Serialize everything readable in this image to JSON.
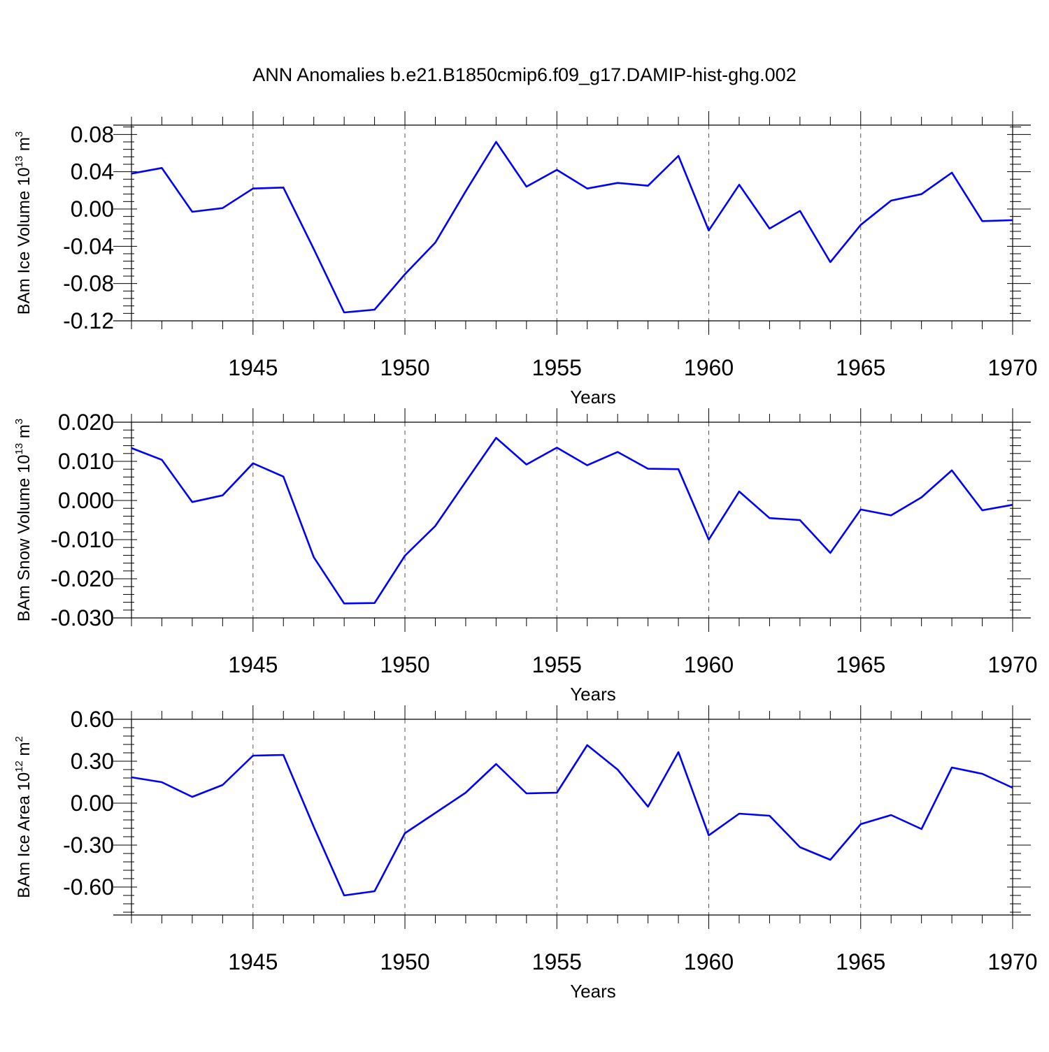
{
  "title": "ANN Anomalies b.e21.B1850cmip6.f09_g17.DAMIP-hist-ghg.002",
  "line_color": "#0000ff",
  "chart_data": [
    {
      "type": "line",
      "title": "ANN Anomalies b.e21.B1850cmip6.f09_g17.DAMIP-hist-ghg.002",
      "xlabel": "Years",
      "ylabel": "BAm Ice Volume 10",
      "ylabel_exp": "13",
      "ylabel_unit": " m",
      "ylabel_unit_exp": "3",
      "xlim": [
        1941,
        1970
      ],
      "ylim": [
        -0.12,
        0.09
      ],
      "xticks": [
        1945,
        1950,
        1955,
        1960,
        1965,
        1970
      ],
      "yticks": [
        "0.08",
        "0.04",
        "0.00",
        "-0.04",
        "-0.08",
        "-0.12"
      ],
      "ytick_values": [
        0.08,
        0.04,
        0.0,
        -0.04,
        -0.08,
        -0.12
      ],
      "grid": "dashed vertical at major x ticks",
      "x": [
        1941,
        1942,
        1943,
        1944,
        1945,
        1946,
        1947,
        1948,
        1949,
        1950,
        1951,
        1952,
        1953,
        1954,
        1955,
        1956,
        1957,
        1958,
        1959,
        1960,
        1961,
        1962,
        1963,
        1964,
        1965,
        1966,
        1967,
        1968,
        1969,
        1970
      ],
      "series": [
        {
          "values": [
            0.038,
            0.044,
            -0.003,
            0.001,
            0.022,
            0.023,
            -0.043,
            -0.111,
            -0.108,
            -0.07,
            -0.036,
            0.019,
            0.072,
            0.024,
            0.042,
            0.022,
            0.028,
            0.025,
            0.057,
            -0.023,
            0.026,
            -0.021,
            -0.002,
            -0.057,
            -0.017,
            0.009,
            0.016,
            0.039,
            -0.013,
            -0.012
          ]
        }
      ]
    },
    {
      "type": "line",
      "xlabel": "Years",
      "ylabel": "BAm Snow Volume 10",
      "ylabel_exp": "13",
      "ylabel_unit": " m",
      "ylabel_unit_exp": "3",
      "xlim": [
        1941,
        1970
      ],
      "ylim": [
        -0.03,
        0.02
      ],
      "xticks": [
        1945,
        1950,
        1955,
        1960,
        1965,
        1970
      ],
      "yticks": [
        "0.020",
        "0.010",
        "0.000",
        "-0.010",
        "-0.020",
        "-0.030"
      ],
      "ytick_values": [
        0.02,
        0.01,
        0.0,
        -0.01,
        -0.02,
        -0.03
      ],
      "grid": "dashed vertical at major x ticks",
      "x": [
        1941,
        1942,
        1943,
        1944,
        1945,
        1946,
        1947,
        1948,
        1949,
        1950,
        1951,
        1952,
        1953,
        1954,
        1955,
        1956,
        1957,
        1958,
        1959,
        1960,
        1961,
        1962,
        1963,
        1964,
        1965,
        1966,
        1967,
        1968,
        1969,
        1970
      ],
      "series": [
        {
          "values": [
            0.0134,
            0.0104,
            -0.0004,
            0.0013,
            0.0095,
            0.0061,
            -0.0145,
            -0.0263,
            -0.0262,
            -0.0141,
            -0.0065,
            0.0048,
            0.016,
            0.0092,
            0.0135,
            0.009,
            0.0124,
            0.0081,
            0.008,
            -0.01,
            0.0023,
            -0.0045,
            -0.005,
            -0.0134,
            -0.0023,
            -0.0038,
            0.0008,
            0.0077,
            -0.0025,
            -0.0011
          ]
        }
      ]
    },
    {
      "type": "line",
      "xlabel": "Years",
      "ylabel": "BAm Ice Area 10",
      "ylabel_exp": "12",
      "ylabel_unit": " m",
      "ylabel_unit_exp": "2",
      "xlim": [
        1941,
        1970
      ],
      "ylim": [
        -0.8,
        0.6
      ],
      "xticks": [
        1945,
        1950,
        1955,
        1960,
        1965,
        1970
      ],
      "yticks": [
        "0.60",
        "0.30",
        "0.00",
        "-0.30",
        "-0.60"
      ],
      "ytick_values": [
        0.6,
        0.3,
        0.0,
        -0.3,
        -0.6
      ],
      "grid": "dashed vertical at major x ticks",
      "x": [
        1941,
        1942,
        1943,
        1944,
        1945,
        1946,
        1947,
        1948,
        1949,
        1950,
        1951,
        1952,
        1953,
        1954,
        1955,
        1956,
        1957,
        1958,
        1959,
        1960,
        1961,
        1962,
        1963,
        1964,
        1965,
        1966,
        1967,
        1968,
        1969,
        1970
      ],
      "series": [
        {
          "values": [
            0.185,
            0.15,
            0.045,
            0.13,
            0.34,
            0.345,
            -0.17,
            -0.66,
            -0.63,
            -0.215,
            -0.07,
            0.075,
            0.28,
            0.07,
            0.075,
            0.415,
            0.24,
            -0.025,
            0.365,
            -0.23,
            -0.075,
            -0.09,
            -0.315,
            -0.405,
            -0.15,
            -0.085,
            -0.185,
            0.255,
            0.21,
            0.11
          ]
        }
      ]
    }
  ]
}
